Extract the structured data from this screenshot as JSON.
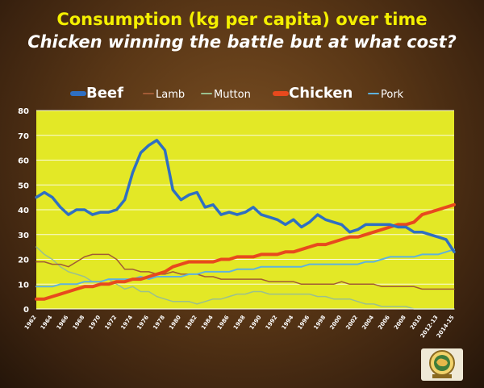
{
  "title": "Consumption (kg per capita) over time",
  "subtitle": "Chicken winning the battle but at what cost?",
  "colors": {
    "plot_background": "#e3e826",
    "title": "#f4f000",
    "Beef": "#2f6fc2",
    "Lamb": "#a15b36",
    "Mutton": "#9ac08e",
    "Chicken": "#e8491d",
    "Pork": "#5fb2dd"
  },
  "chart_data": {
    "type": "line",
    "x": [
      1962,
      1963,
      1964,
      1965,
      1966,
      1967,
      1968,
      1969,
      1970,
      1971,
      1972,
      1973,
      1974,
      1975,
      1976,
      1977,
      1978,
      1979,
      1980,
      1981,
      1982,
      1983,
      1984,
      1985,
      1986,
      1987,
      1988,
      1989,
      1990,
      1991,
      1992,
      1993,
      1994,
      1995,
      1996,
      1997,
      1998,
      1999,
      2000,
      2001,
      2002,
      2003,
      2004,
      2005,
      2006,
      2007,
      2008,
      2009,
      2010,
      2011,
      2012,
      2013,
      2014
    ],
    "x_tick_labels": [
      "1962",
      "1964",
      "1966",
      "1968",
      "1970",
      "1972",
      "1974",
      "1976",
      "1978",
      "1980",
      "1982",
      "1984",
      "1986",
      "1988",
      "1990",
      "1992",
      "1994",
      "1996",
      "1998",
      "2000",
      "2002",
      "2004",
      "2006",
      "2008",
      "2010",
      "2012-13",
      "2014-15"
    ],
    "ylim": [
      0,
      80
    ],
    "y_ticks": [
      0,
      10,
      20,
      30,
      40,
      50,
      60,
      70,
      80
    ],
    "grid": true,
    "legend_position": "top",
    "series": [
      {
        "name": "Beef",
        "values": [
          45,
          47,
          45,
          41,
          38,
          40,
          40,
          38,
          39,
          39,
          40,
          44,
          55,
          63,
          66,
          68,
          64,
          48,
          44,
          46,
          47,
          41,
          42,
          38,
          39,
          38,
          39,
          41,
          38,
          37,
          36,
          34,
          36,
          33,
          35,
          38,
          36,
          35,
          34,
          31,
          32,
          34,
          34,
          34,
          34,
          33,
          33,
          31,
          31,
          30,
          29,
          28,
          23
        ]
      },
      {
        "name": "Lamb",
        "values": [
          19,
          19,
          18,
          18,
          17,
          19,
          21,
          22,
          22,
          22,
          20,
          16,
          16,
          15,
          15,
          14,
          14,
          15,
          14,
          14,
          14,
          13,
          13,
          12,
          12,
          12,
          12,
          12,
          12,
          11,
          11,
          11,
          11,
          10,
          10,
          10,
          10,
          10,
          11,
          10,
          10,
          10,
          10,
          9,
          9,
          9,
          9,
          9,
          8,
          8,
          8,
          8,
          8
        ]
      },
      {
        "name": "Mutton",
        "values": [
          25,
          22,
          20,
          17,
          15,
          14,
          13,
          11,
          11,
          12,
          10,
          8,
          9,
          7,
          7,
          5,
          4,
          3,
          3,
          3,
          2,
          3,
          4,
          4,
          5,
          6,
          6,
          7,
          7,
          6,
          6,
          6,
          6,
          6,
          6,
          5,
          5,
          4,
          4,
          4,
          3,
          2,
          2,
          1,
          1,
          1,
          1,
          0,
          0,
          0,
          0,
          0,
          0
        ]
      },
      {
        "name": "Chicken",
        "values": [
          4,
          4,
          5,
          6,
          7,
          8,
          9,
          9,
          10,
          10,
          11,
          11,
          12,
          12,
          13,
          14,
          15,
          17,
          18,
          19,
          19,
          19,
          19,
          20,
          20,
          21,
          21,
          21,
          22,
          22,
          22,
          23,
          23,
          24,
          25,
          26,
          26,
          27,
          28,
          29,
          29,
          30,
          31,
          32,
          33,
          34,
          34,
          35,
          38,
          39,
          40,
          41,
          42
        ]
      },
      {
        "name": "Pork",
        "values": [
          9,
          9,
          9,
          10,
          10,
          10,
          11,
          11,
          11,
          12,
          12,
          12,
          12,
          13,
          12,
          13,
          13,
          13,
          13,
          14,
          14,
          15,
          15,
          15,
          15,
          16,
          16,
          16,
          17,
          17,
          17,
          17,
          17,
          17,
          18,
          18,
          18,
          18,
          18,
          18,
          18,
          19,
          19,
          20,
          21,
          21,
          21,
          21,
          22,
          22,
          22,
          23,
          24
        ]
      }
    ]
  },
  "logo": {
    "name": "australian-badge-logo"
  }
}
